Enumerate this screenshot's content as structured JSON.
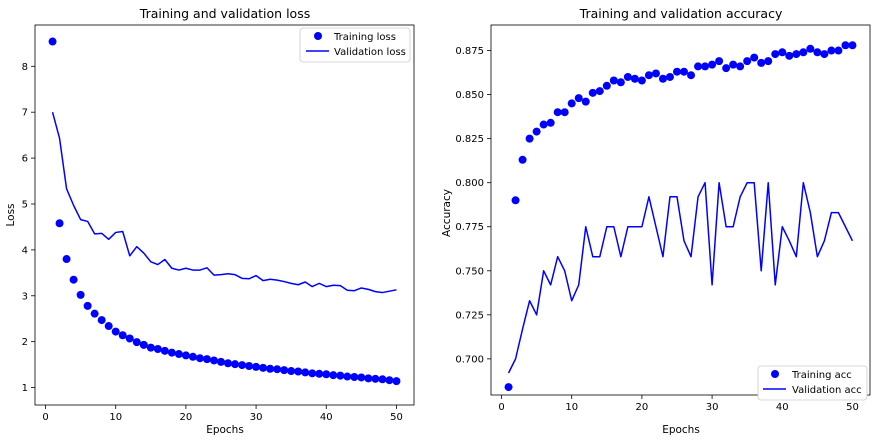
{
  "chart_data": [
    {
      "type": "line",
      "title": "Training and validation loss",
      "xlabel": "Epochs",
      "ylabel": "Loss",
      "xlim": [
        -1.5,
        52.5
      ],
      "ylim": [
        0.62,
        8.9
      ],
      "xticks": [
        0,
        10,
        20,
        30,
        40,
        50
      ],
      "yticks": [
        1,
        2,
        3,
        4,
        5,
        6,
        7,
        8
      ],
      "legend": {
        "position": "top-right"
      },
      "color": "#0000ff",
      "x": [
        1,
        2,
        3,
        4,
        5,
        6,
        7,
        8,
        9,
        10,
        11,
        12,
        13,
        14,
        15,
        16,
        17,
        18,
        19,
        20,
        21,
        22,
        23,
        24,
        25,
        26,
        27,
        28,
        29,
        30,
        31,
        32,
        33,
        34,
        35,
        36,
        37,
        38,
        39,
        40,
        41,
        42,
        43,
        44,
        45,
        46,
        47,
        48,
        49,
        50
      ],
      "series": [
        {
          "name": "Training loss",
          "style": "points",
          "values": [
            8.54,
            4.58,
            3.8,
            3.35,
            3.02,
            2.78,
            2.61,
            2.47,
            2.34,
            2.22,
            2.14,
            2.07,
            1.99,
            1.93,
            1.87,
            1.84,
            1.8,
            1.76,
            1.73,
            1.7,
            1.67,
            1.64,
            1.62,
            1.59,
            1.56,
            1.53,
            1.51,
            1.49,
            1.47,
            1.45,
            1.43,
            1.41,
            1.4,
            1.38,
            1.36,
            1.35,
            1.33,
            1.31,
            1.3,
            1.29,
            1.27,
            1.26,
            1.24,
            1.23,
            1.22,
            1.2,
            1.19,
            1.18,
            1.16,
            1.14
          ]
        },
        {
          "name": "Validation loss",
          "style": "line",
          "values": [
            7.0,
            6.43,
            5.33,
            4.97,
            4.66,
            4.62,
            4.35,
            4.36,
            4.23,
            4.38,
            4.4,
            3.87,
            4.07,
            3.93,
            3.74,
            3.68,
            3.79,
            3.6,
            3.56,
            3.6,
            3.56,
            3.56,
            3.61,
            3.45,
            3.46,
            3.48,
            3.46,
            3.38,
            3.37,
            3.44,
            3.33,
            3.36,
            3.34,
            3.31,
            3.27,
            3.24,
            3.3,
            3.2,
            3.27,
            3.2,
            3.23,
            3.22,
            3.12,
            3.11,
            3.17,
            3.14,
            3.09,
            3.07,
            3.1,
            3.13
          ]
        }
      ]
    },
    {
      "type": "line",
      "title": "Training and validation accuracy",
      "xlabel": "Epochs",
      "ylabel": "Accuracy",
      "xlim": [
        -1.5,
        52.5
      ],
      "ylim": [
        0.6795,
        0.8895
      ],
      "xticks": [
        0,
        10,
        20,
        30,
        40,
        50
      ],
      "yticks": [
        0.7,
        0.725,
        0.75,
        0.775,
        0.8,
        0.825,
        0.85,
        0.875
      ],
      "legend": {
        "position": "bottom-right"
      },
      "color": "#0000ff",
      "x": [
        1,
        2,
        3,
        4,
        5,
        6,
        7,
        8,
        9,
        10,
        11,
        12,
        13,
        14,
        15,
        16,
        17,
        18,
        19,
        20,
        21,
        22,
        23,
        24,
        25,
        26,
        27,
        28,
        29,
        30,
        31,
        32,
        33,
        34,
        35,
        36,
        37,
        38,
        39,
        40,
        41,
        42,
        43,
        44,
        45,
        46,
        47,
        48,
        49,
        50
      ],
      "series": [
        {
          "name": "Training acc",
          "style": "points",
          "values": [
            0.684,
            0.79,
            0.813,
            0.825,
            0.829,
            0.833,
            0.834,
            0.84,
            0.84,
            0.845,
            0.848,
            0.846,
            0.851,
            0.852,
            0.855,
            0.858,
            0.857,
            0.86,
            0.859,
            0.858,
            0.861,
            0.862,
            0.859,
            0.86,
            0.863,
            0.863,
            0.861,
            0.866,
            0.866,
            0.867,
            0.869,
            0.865,
            0.867,
            0.866,
            0.869,
            0.871,
            0.868,
            0.869,
            0.873,
            0.874,
            0.872,
            0.873,
            0.874,
            0.876,
            0.874,
            0.873,
            0.875,
            0.875,
            0.878,
            0.878
          ]
        },
        {
          "name": "Validation acc",
          "style": "line",
          "values": [
            0.692,
            0.7,
            0.717,
            0.733,
            0.725,
            0.75,
            0.742,
            0.758,
            0.75,
            0.733,
            0.742,
            0.775,
            0.758,
            0.758,
            0.775,
            0.775,
            0.758,
            0.775,
            0.775,
            0.775,
            0.792,
            0.775,
            0.758,
            0.792,
            0.792,
            0.767,
            0.758,
            0.792,
            0.8,
            0.742,
            0.8,
            0.775,
            0.775,
            0.792,
            0.8,
            0.8,
            0.75,
            0.8,
            0.742,
            0.775,
            0.767,
            0.758,
            0.8,
            0.783,
            0.758,
            0.767,
            0.783,
            0.783,
            0.775,
            0.767
          ]
        }
      ]
    }
  ]
}
